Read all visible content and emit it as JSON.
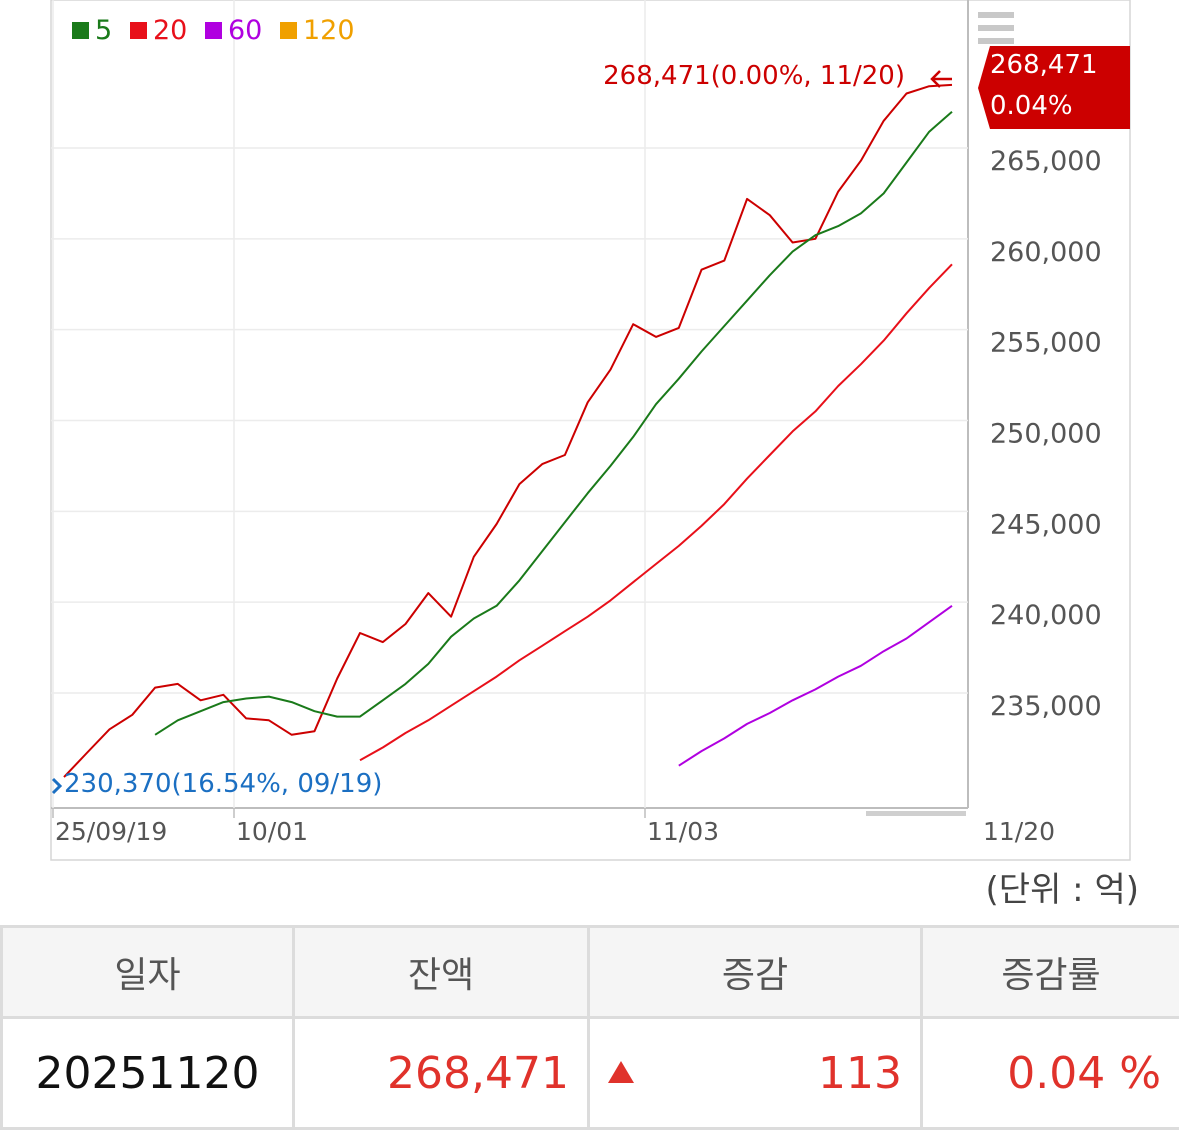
{
  "chart_data": {
    "type": "line",
    "legend": [
      {
        "name": "5",
        "color": "#1a7a1a"
      },
      {
        "name": "20",
        "color": "#e8101a"
      },
      {
        "name": "60",
        "color": "#b000e0"
      },
      {
        "name": "120",
        "color": "#f0a000"
      }
    ],
    "x_tick_labels": [
      "25/09/19",
      "10/01",
      "11/03",
      "11/20"
    ],
    "y_tick_labels": [
      "265,000",
      "260,000",
      "255,000",
      "250,000",
      "245,000",
      "240,000",
      "235,000"
    ],
    "ylim": [
      229000,
      271000
    ],
    "series": [
      {
        "role": "balance",
        "color": "#cc0000",
        "values": [
          230370,
          231700,
          233000,
          233800,
          235300,
          235500,
          234600,
          234900,
          233600,
          233500,
          232700,
          232900,
          235800,
          238300,
          237800,
          238800,
          240500,
          239200,
          242500,
          244300,
          246500,
          247600,
          248100,
          251000,
          252800,
          255300,
          254600,
          255100,
          258300,
          258800,
          262200,
          261300,
          259800,
          260000,
          262600,
          264300,
          266500,
          268000,
          268400,
          268471
        ]
      },
      {
        "role": "ma5",
        "color": "#1a7a1a",
        "values": [
          null,
          null,
          null,
          null,
          232700,
          233500,
          234000,
          234500,
          234700,
          234800,
          234500,
          234000,
          233700,
          233700,
          234600,
          235500,
          236600,
          238100,
          239100,
          239800,
          241200,
          242800,
          244400,
          246000,
          247500,
          249100,
          250900,
          252300,
          253800,
          255200,
          256600,
          258000,
          259300,
          260200,
          260700,
          261400,
          262500,
          264200,
          265900,
          267000
        ]
      },
      {
        "role": "ma20",
        "color": "#e8101a",
        "values": [
          null,
          null,
          null,
          null,
          null,
          null,
          null,
          null,
          null,
          null,
          null,
          null,
          null,
          231300,
          232000,
          232800,
          233500,
          234300,
          235100,
          235900,
          236800,
          237600,
          238400,
          239200,
          240100,
          241100,
          242100,
          243100,
          244200,
          245400,
          246800,
          248100,
          249400,
          250500,
          251900,
          253100,
          254400,
          255900,
          257300,
          258600
        ]
      },
      {
        "role": "ma60",
        "color": "#b000e0",
        "values": [
          null,
          null,
          null,
          null,
          null,
          null,
          null,
          null,
          null,
          null,
          null,
          null,
          null,
          null,
          null,
          null,
          null,
          null,
          null,
          null,
          null,
          null,
          null,
          null,
          null,
          null,
          null,
          231000,
          231800,
          232500,
          233300,
          233900,
          234600,
          235200,
          235900,
          236500,
          237300,
          238000,
          238900,
          239800
        ]
      }
    ],
    "last_value": "268,471",
    "last_annotation": "268,471(0.00%, 11/20)",
    "first_annotation": "230,370(16.54%, 09/19)",
    "badge_value": "268,471",
    "badge_percent": "0.04%"
  },
  "unit_label": "(단위 : 억)",
  "table": {
    "headers": [
      "일자",
      "잔액",
      "증감",
      "증감률"
    ],
    "row": {
      "date": "20251120",
      "balance": "268,471",
      "change": "113",
      "rate": "0.04 %"
    }
  }
}
